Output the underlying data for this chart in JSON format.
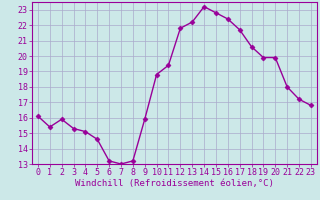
{
  "x": [
    0,
    1,
    2,
    3,
    4,
    5,
    6,
    7,
    8,
    9,
    10,
    11,
    12,
    13,
    14,
    15,
    16,
    17,
    18,
    19,
    20,
    21,
    22,
    23
  ],
  "y": [
    16.1,
    15.4,
    15.9,
    15.3,
    15.1,
    14.6,
    13.2,
    13.0,
    13.2,
    15.9,
    18.8,
    19.4,
    21.8,
    22.2,
    23.2,
    22.8,
    22.4,
    21.7,
    20.6,
    19.9,
    19.9,
    18.0,
    17.2,
    16.8
  ],
  "line_color": "#990099",
  "marker": "D",
  "markersize": 2.5,
  "linewidth": 1.0,
  "bg_color": "#cce8e8",
  "grid_color": "#aaaacc",
  "xlabel": "Windchill (Refroidissement éolien,°C)",
  "xlim": [
    -0.5,
    23.5
  ],
  "ylim": [
    13,
    23.5
  ],
  "yticks": [
    13,
    14,
    15,
    16,
    17,
    18,
    19,
    20,
    21,
    22,
    23
  ],
  "xticks": [
    0,
    1,
    2,
    3,
    4,
    5,
    6,
    7,
    8,
    9,
    10,
    11,
    12,
    13,
    14,
    15,
    16,
    17,
    18,
    19,
    20,
    21,
    22,
    23
  ],
  "xlabel_fontsize": 6.5,
  "tick_fontsize": 6.0
}
